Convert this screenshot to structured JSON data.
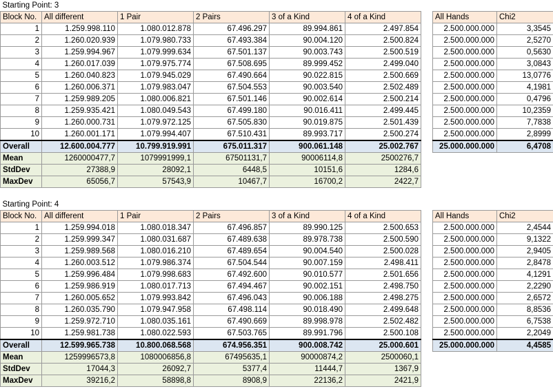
{
  "sections": [
    {
      "title": "Starting Point: 3",
      "header": [
        "Block No.",
        "All different",
        "1 Pair",
        "2 Pairs",
        "3 of a Kind",
        "4 of a Kind",
        "All Hands",
        "Chi2"
      ],
      "rows": [
        [
          1,
          "1.259.998.110",
          "1.080.012.878",
          "67.496.297",
          "89.994.861",
          "2.497.854",
          "2.500.000.000",
          "3,3545"
        ],
        [
          2,
          "1.260.020.939",
          "1.079.980.733",
          "67.493.384",
          "90.004.120",
          "2.500.824",
          "2.500.000.000",
          "2,5270"
        ],
        [
          3,
          "1.259.994.967",
          "1.079.999.634",
          "67.501.137",
          "90.003.743",
          "2.500.519",
          "2.500.000.000",
          "0,5630"
        ],
        [
          4,
          "1.260.017.039",
          "1.079.975.774",
          "67.508.695",
          "89.999.452",
          "2.499.040",
          "2.500.000.000",
          "3,0843"
        ],
        [
          5,
          "1.260.040.823",
          "1.079.945.029",
          "67.490.664",
          "90.022.815",
          "2.500.669",
          "2.500.000.000",
          "13,0776"
        ],
        [
          6,
          "1.260.006.371",
          "1.079.983.047",
          "67.504.553",
          "90.003.540",
          "2.502.489",
          "2.500.000.000",
          "4,1981"
        ],
        [
          7,
          "1.259.989.205",
          "1.080.006.821",
          "67.501.146",
          "90.002.614",
          "2.500.214",
          "2.500.000.000",
          "0,4796"
        ],
        [
          8,
          "1.259.935.421",
          "1.080.049.543",
          "67.499.180",
          "90.016.411",
          "2.499.445",
          "2.500.000.000",
          "10,2359"
        ],
        [
          9,
          "1.260.000.731",
          "1.079.972.125",
          "67.505.830",
          "90.019.875",
          "2.501.439",
          "2.500.000.000",
          "7,7838"
        ],
        [
          10,
          "1.260.001.171",
          "1.079.994.407",
          "67.510.431",
          "89.993.717",
          "2.500.274",
          "2.500.000.000",
          "2,8999"
        ]
      ],
      "overall": {
        "label": "Overall",
        "values": [
          "12.600.004.777",
          "10.799.919.991",
          "675.011.317",
          "900.061.148",
          "25.002.767",
          "25.000.000.000",
          "6,4708"
        ]
      },
      "stats": [
        {
          "label": "Mean",
          "values": [
            "1260000477,7",
            "1079991999,1",
            "67501131,7",
            "90006114,8",
            "2500276,7"
          ]
        },
        {
          "label": "StdDev",
          "values": [
            "27388,9",
            "28092,1",
            "6448,5",
            "10151,6",
            "1284,6"
          ]
        },
        {
          "label": "MaxDev",
          "values": [
            "65056,7",
            "57543,9",
            "10467,7",
            "16700,2",
            "2422,7"
          ]
        }
      ]
    },
    {
      "title": "Starting Point: 4",
      "header": [
        "Block No.",
        "All different",
        "1 Pair",
        "2 Pairs",
        "3 of a Kind",
        "4 of a Kind",
        "All Hands",
        "Chi2"
      ],
      "rows": [
        [
          1,
          "1.259.994.018",
          "1.080.018.347",
          "67.496.857",
          "89.990.125",
          "2.500.653",
          "2.500.000.000",
          "2,4544"
        ],
        [
          2,
          "1.259.999.347",
          "1.080.031.687",
          "67.489.638",
          "89.978.738",
          "2.500.590",
          "2.500.000.000",
          "9,1322"
        ],
        [
          3,
          "1.259.989.568",
          "1.080.016.210",
          "67.489.654",
          "90.004.540",
          "2.500.028",
          "2.500.000.000",
          "2,9405"
        ],
        [
          4,
          "1.260.003.512",
          "1.079.986.374",
          "67.504.544",
          "90.007.159",
          "2.498.411",
          "2.500.000.000",
          "2,8478"
        ],
        [
          5,
          "1.259.996.484",
          "1.079.998.683",
          "67.492.600",
          "90.010.577",
          "2.501.656",
          "2.500.000.000",
          "4,1291"
        ],
        [
          6,
          "1.259.986.919",
          "1.080.017.713",
          "67.494.467",
          "90.002.151",
          "2.498.750",
          "2.500.000.000",
          "2,2290"
        ],
        [
          7,
          "1.260.005.652",
          "1.079.993.842",
          "67.496.043",
          "90.006.188",
          "2.498.275",
          "2.500.000.000",
          "2,6572"
        ],
        [
          8,
          "1.260.035.790",
          "1.079.947.958",
          "67.498.114",
          "90.018.490",
          "2.499.648",
          "2.500.000.000",
          "8,8536"
        ],
        [
          9,
          "1.259.972.710",
          "1.080.035.161",
          "67.490.669",
          "89.998.978",
          "2.502.482",
          "2.500.000.000",
          "6,7538"
        ],
        [
          10,
          "1.259.981.738",
          "1.080.022.593",
          "67.503.765",
          "89.991.796",
          "2.500.108",
          "2.500.000.000",
          "2,2049"
        ]
      ],
      "overall": {
        "label": "Overall",
        "values": [
          "12.599.965.738",
          "10.800.068.568",
          "674.956.351",
          "900.008.742",
          "25.000.601",
          "25.000.000.000",
          "4,4585"
        ]
      },
      "stats": [
        {
          "label": "Mean",
          "values": [
            "1259996573,8",
            "1080006856,8",
            "67495635,1",
            "90000874,2",
            "2500060,1"
          ]
        },
        {
          "label": "StdDev",
          "values": [
            "17044,3",
            "26092,7",
            "5377,4",
            "11444,7",
            "1367,9"
          ]
        },
        {
          "label": "MaxDev",
          "values": [
            "39216,2",
            "58898,8",
            "8908,9",
            "22136,2",
            "2421,9"
          ]
        }
      ]
    }
  ]
}
